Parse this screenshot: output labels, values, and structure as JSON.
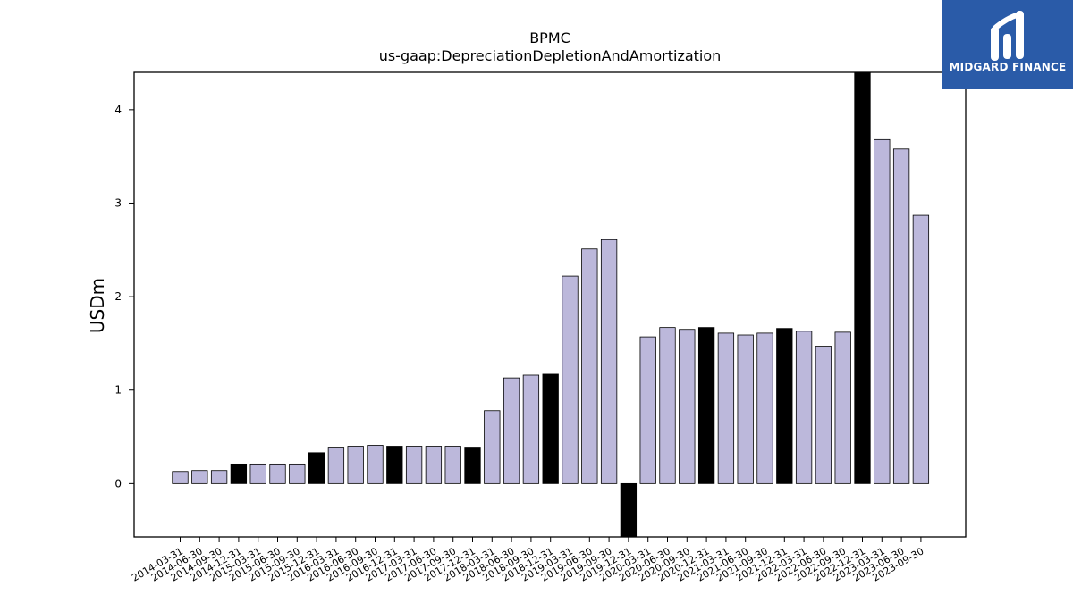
{
  "brand": {
    "name": "MIDGARD FINANCE"
  },
  "chart_data": {
    "type": "bar",
    "title": "BPMC",
    "subtitle": "us-gaap:DepreciationDepletionAndAmortization",
    "ylabel": "USDm",
    "xlabel": "",
    "ylim": [
      -0.57,
      4.4
    ],
    "yticks": [
      0,
      1,
      2,
      3,
      4
    ],
    "grid": false,
    "colors": {
      "quarter": "#bcb8db",
      "fiscal_year_end": "#000000",
      "edge": "#000000"
    },
    "categories": [
      "2014-03-31",
      "2014-06-30",
      "2014-09-30",
      "2014-12-31",
      "2015-03-31",
      "2015-06-30",
      "2015-09-30",
      "2015-12-31",
      "2016-03-31",
      "2016-06-30",
      "2016-09-30",
      "2016-12-31",
      "2017-03-31",
      "2017-06-30",
      "2017-09-30",
      "2017-12-31",
      "2018-03-31",
      "2018-06-30",
      "2018-09-30",
      "2018-12-31",
      "2019-03-31",
      "2019-06-30",
      "2019-09-30",
      "2019-12-31",
      "2020-03-31",
      "2020-06-30",
      "2020-09-30",
      "2020-12-31",
      "2021-03-31",
      "2021-06-30",
      "2021-09-30",
      "2021-12-31",
      "2022-03-31",
      "2022-06-30",
      "2022-09-30",
      "2022-12-31",
      "2023-03-31",
      "2023-06-30",
      "2023-09-30"
    ],
    "values": [
      0.13,
      0.14,
      0.14,
      0.21,
      0.21,
      0.21,
      0.21,
      0.33,
      0.39,
      0.4,
      0.41,
      0.4,
      0.4,
      0.4,
      0.4,
      0.39,
      0.78,
      1.13,
      1.16,
      1.17,
      2.22,
      2.51,
      2.61,
      -0.57,
      1.57,
      1.67,
      1.65,
      1.67,
      1.61,
      1.59,
      1.61,
      1.66,
      1.63,
      1.47,
      1.62,
      4.4,
      3.68,
      3.58,
      2.87
    ],
    "highlight": [
      false,
      false,
      false,
      true,
      false,
      false,
      false,
      true,
      false,
      false,
      false,
      true,
      false,
      false,
      false,
      true,
      false,
      false,
      false,
      true,
      false,
      false,
      false,
      true,
      false,
      false,
      false,
      true,
      false,
      false,
      false,
      true,
      false,
      false,
      false,
      true,
      false,
      false,
      false
    ]
  }
}
